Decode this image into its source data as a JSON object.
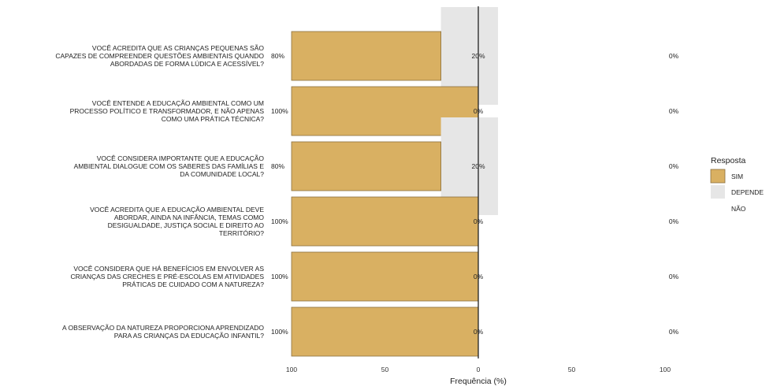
{
  "chart_data": {
    "type": "bar",
    "orientation": "horizontal-diverging",
    "xlabel": "Frequência (%)",
    "x_ticks": [
      "100",
      "50",
      "0",
      "50",
      "100"
    ],
    "xlim": [
      -100,
      100
    ],
    "grid": false,
    "legend": {
      "title": "Resposta",
      "position": "right",
      "entries": [
        {
          "label": "SIM",
          "color": "#d9b062"
        },
        {
          "label": "DEPENDE",
          "color": "#e6e6e6"
        },
        {
          "label": "NÃO",
          "color": "#ffffff"
        }
      ]
    },
    "categories": [
      [
        "VOCÊ ACREDITA QUE AS CRIANÇAS PEQUENAS SÃO",
        "CAPAZES DE COMPREENDER QUESTÕES AMBIENTAIS QUANDO",
        "ABORDADAS DE FORMA LÚDICA E ACESSÍVEL?"
      ],
      [
        "VOCÊ ENTENDE A EDUCAÇÃO AMBIENTAL COMO UM",
        "PROCESSO POLÍTICO E TRANSFORMADOR, E NÃO APENAS",
        "COMO UMA PRÁTICA TÉCNICA?"
      ],
      [
        "VOCÊ CONSIDERA IMPORTANTE QUE A EDUCAÇÃO",
        "AMBIENTAL DIALOGUE COM OS SABERES DAS FAMÍLIAS E",
        "DA COMUNIDADE LOCAL?"
      ],
      [
        "VOCÊ ACREDITA QUE A EDUCAÇÃO AMBIENTAL DEVE",
        "ABORDAR, AINDA NA INFÂNCIA, TEMAS COMO",
        "DESIGUALDADE, JUSTIÇA SOCIAL E DIREITO AO",
        "TERRITÓRIO?"
      ],
      [
        "VOCÊ CONSIDERA QUE HÁ BENEFÍCIOS EM ENVOLVER AS",
        "CRIANÇAS DAS CRECHES E PRÉ-ESCOLAS EM ATIVIDADES",
        "PRÁTICAS DE CUIDADO COM A NATUREZA?"
      ],
      [
        "A OBSERVAÇÃO DA NATUREZA PROPORCIONA APRENDIZADO",
        "PARA AS CRIANÇAS DA EDUCAÇÃO INFANTIL?"
      ]
    ],
    "series": [
      {
        "name": "SIM",
        "values": [
          80,
          100,
          80,
          100,
          100,
          100
        ],
        "labels": [
          "80%",
          "100%",
          "80%",
          "100%",
          "100%",
          "100%"
        ]
      },
      {
        "name": "DEPENDE",
        "values": [
          20,
          0,
          20,
          0,
          0,
          0
        ],
        "labels": [
          "20%",
          "0%",
          "20%",
          "0%",
          "0%",
          "0%"
        ]
      },
      {
        "name": "NÃO",
        "values": [
          0,
          0,
          0,
          0,
          0,
          0
        ],
        "labels": [
          "0%",
          "0%",
          "0%",
          "0%",
          "0%",
          "0%"
        ]
      }
    ]
  }
}
